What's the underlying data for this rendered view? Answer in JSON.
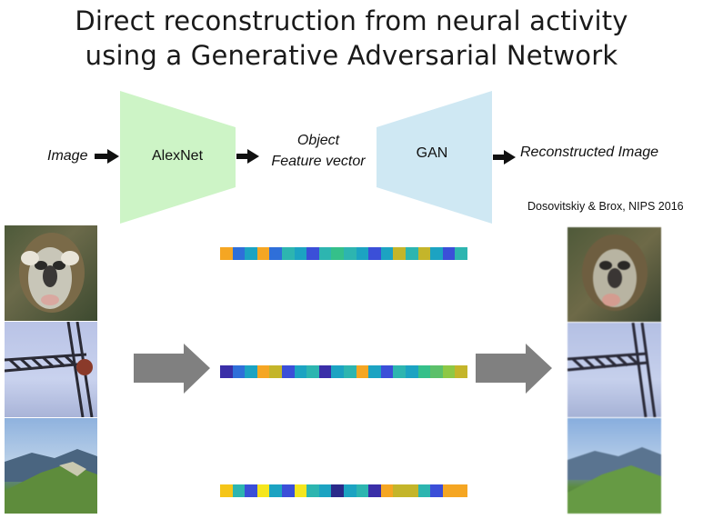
{
  "title": {
    "line1": "Direct reconstruction from neural activity",
    "line2": "using a Generative Adversarial Network"
  },
  "pipeline": {
    "input_label": "Image",
    "encoder_label": "AlexNet",
    "feature_label_line1": "Object",
    "feature_label_line2": "Feature vector",
    "decoder_label": "GAN",
    "output_label": "Reconstructed Image"
  },
  "citation": "Dosovitskiy & Brox, NIPS 2016",
  "colors": {
    "encoder_fill": "#cdf4c6",
    "decoder_fill": "#cfe8f3",
    "arrow_black": "#111111",
    "arrow_gray": "#808080"
  },
  "input_images": [
    "monkey",
    "crane",
    "mountain"
  ],
  "output_images": [
    "monkey",
    "crane",
    "mountain"
  ],
  "feature_vectors": [
    [
      "#f5a623",
      "#2f6fd9",
      "#1ca3c2",
      "#f5a623",
      "#2f6fd9",
      "#2db5b0",
      "#1ca3c2",
      "#3b4fd8",
      "#2db5b0",
      "#35c08a",
      "#2db5b0",
      "#1ca3c2",
      "#3b4fd8",
      "#1ca3c2",
      "#c4b52a",
      "#2db5b0",
      "#c4b52a",
      "#1ca3c2",
      "#3b4fd8",
      "#2db5b0"
    ],
    [
      "#3a2fa8",
      "#2f6fd9",
      "#1ca3c2",
      "#f5a623",
      "#c4b52a",
      "#3b4fd8",
      "#1ca3c2",
      "#2db5b0",
      "#3a2fa8",
      "#1ca3c2",
      "#2db5b0",
      "#f5a623",
      "#1ca3c2",
      "#3b4fd8",
      "#2db5b0",
      "#1ca3c2",
      "#35c08a",
      "#5cc06a",
      "#8ec845",
      "#c4b52a"
    ],
    [
      "#f5c518",
      "#2db5b0",
      "#3b4fd8",
      "#f5e61e",
      "#1ca3c2",
      "#3b4fd8",
      "#f5e61e",
      "#2db5b0",
      "#1ca3c2",
      "#2a2a8a",
      "#1ca3c2",
      "#2db5b0",
      "#3a2fa8",
      "#f5a623",
      "#c4b52a",
      "#c4b52a",
      "#2db5b0",
      "#3b4fd8",
      "#f5a623",
      "#f5a623"
    ]
  ]
}
